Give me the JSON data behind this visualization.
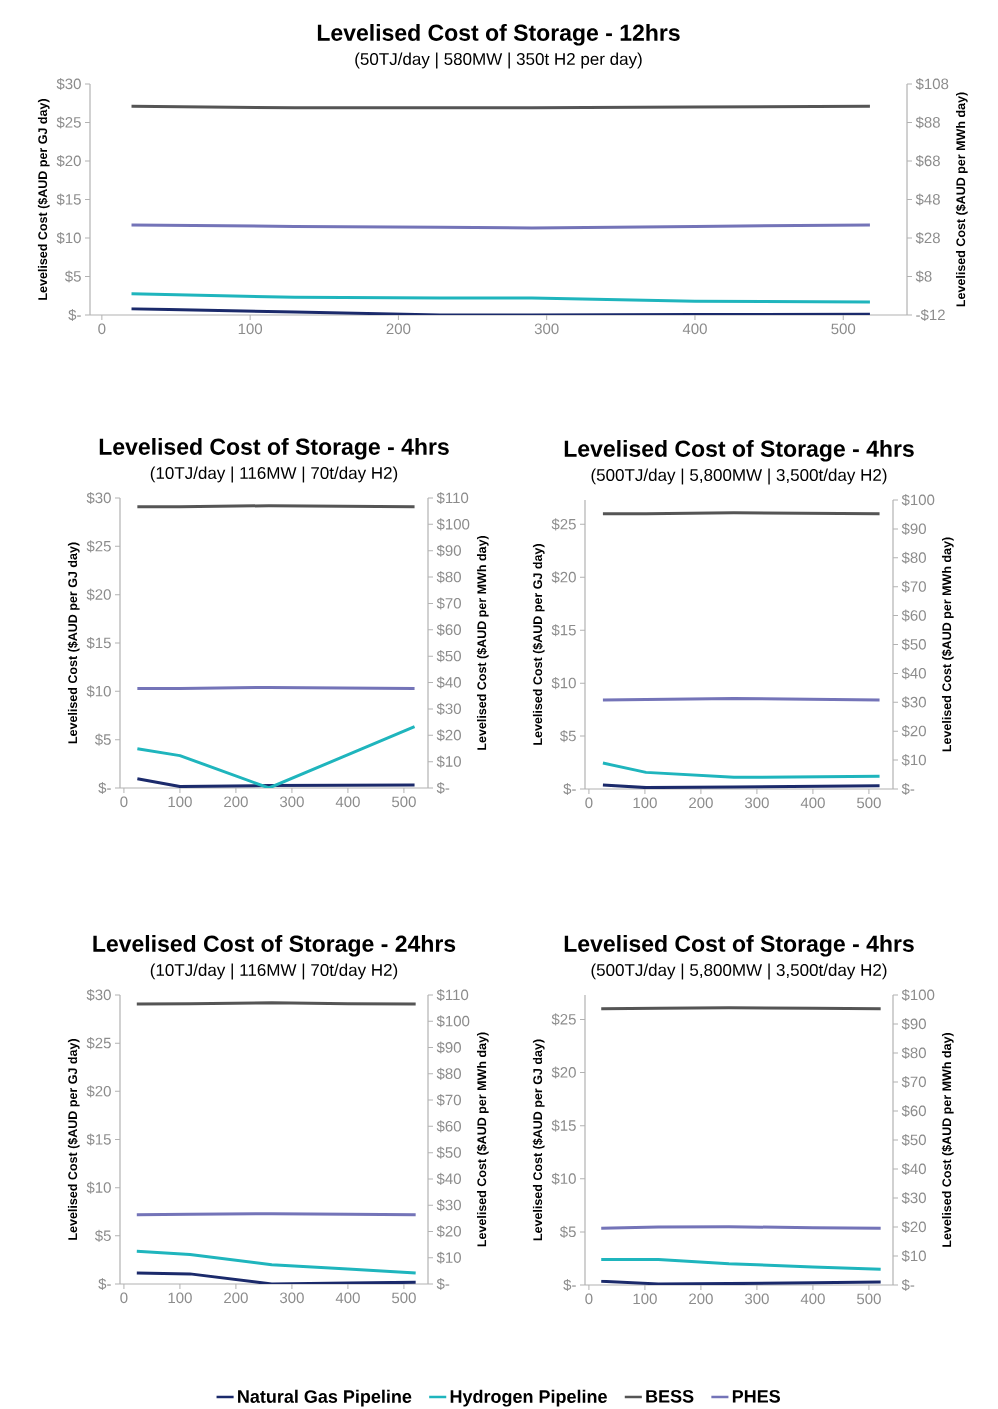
{
  "chart_data": [
    {
      "type": "line",
      "title": "Levelised Cost of Storage - 12hrs",
      "subtitle": "(50TJ/day | 580MW | 350t H2 per day)",
      "ylabel": "Levelised Cost ($AUD per GJ day)",
      "y2label": "Levelised Cost ($AUD per MWh day)",
      "xlim": [
        -8,
        543
      ],
      "xticks": [
        0,
        100,
        200,
        300,
        400,
        500
      ],
      "ylim": [
        0,
        30
      ],
      "yticks": [
        {
          "value": 0,
          "label": "$-"
        },
        {
          "value": 5,
          "label": "$5"
        },
        {
          "value": 10,
          "label": "$10"
        },
        {
          "value": 15,
          "label": "$15"
        },
        {
          "value": 20,
          "label": "$20"
        },
        {
          "value": 25,
          "label": "$25"
        },
        {
          "value": 30,
          "label": "$30"
        }
      ],
      "y2lim": [
        -12,
        108
      ],
      "y2ticks": [
        {
          "value": -12,
          "label": "-$12"
        },
        {
          "value": 8,
          "label": "$8"
        },
        {
          "value": 28,
          "label": "$28"
        },
        {
          "value": 48,
          "label": "$48"
        },
        {
          "value": 68,
          "label": "$68"
        },
        {
          "value": 88,
          "label": "$88"
        },
        {
          "value": 108,
          "label": "$108"
        }
      ],
      "x": [
        20,
        130,
        228,
        290,
        400,
        518
      ],
      "series": [
        {
          "color": "#1b2a6b",
          "values": [
            0.8,
            0.4,
            0,
            0,
            0.05,
            0.1
          ]
        },
        {
          "color": "#1fb5bd",
          "values": [
            2.75,
            2.3,
            2.2,
            2.2,
            1.8,
            1.7
          ]
        },
        {
          "color": "#555555",
          "values": [
            27.1,
            26.9,
            26.9,
            26.9,
            27.0,
            27.1
          ]
        },
        {
          "color": "#7474b8",
          "values": [
            11.7,
            11.5,
            11.4,
            11.3,
            11.5,
            11.7
          ]
        }
      ]
    },
    {
      "type": "line",
      "title": "Levelised Cost of Storage - 4hrs",
      "subtitle": "(10TJ/day | 116MW | 70t/day H2)",
      "ylabel": "Levelised Cost ($AUD per GJ day)",
      "y2label": "Levelised Cost ($AUD per MWh day)",
      "xlim": [
        -7,
        543
      ],
      "xticks": [
        0,
        100,
        200,
        300,
        400,
        500
      ],
      "ylim": [
        0,
        30
      ],
      "yticks": [
        {
          "value": 0,
          "label": "$-"
        },
        {
          "value": 5,
          "label": "$5"
        },
        {
          "value": 10,
          "label": "$10"
        },
        {
          "value": 15,
          "label": "$15"
        },
        {
          "value": 20,
          "label": "$20"
        },
        {
          "value": 25,
          "label": "$25"
        },
        {
          "value": 30,
          "label": "$30"
        }
      ],
      "y2lim": [
        0,
        110
      ],
      "y2ticks": [
        {
          "value": 0,
          "label": "$-"
        },
        {
          "value": 10,
          "label": "$10"
        },
        {
          "value": 20,
          "label": "$20"
        },
        {
          "value": 30,
          "label": "$30"
        },
        {
          "value": 40,
          "label": "$40"
        },
        {
          "value": 50,
          "label": "$50"
        },
        {
          "value": 60,
          "label": "$60"
        },
        {
          "value": 70,
          "label": "$70"
        },
        {
          "value": 80,
          "label": "$80"
        },
        {
          "value": 90,
          "label": "$90"
        },
        {
          "value": 100,
          "label": "$100"
        },
        {
          "value": 110,
          "label": "$110"
        }
      ],
      "x": [
        24,
        100,
        259,
        519
      ],
      "series": [
        {
          "color": "#1b2a6b",
          "values": [
            0.95,
            0.15,
            0.25,
            0.3
          ]
        },
        {
          "color": "#1fb5bd",
          "values": [
            4.05,
            3.35,
            0,
            6.35
          ]
        },
        {
          "color": "#555555",
          "values": [
            29.1,
            29.1,
            29.2,
            29.1
          ]
        },
        {
          "color": "#7474b8",
          "values": [
            10.3,
            10.3,
            10.4,
            10.3
          ]
        }
      ]
    },
    {
      "type": "line",
      "title": "Levelised Cost of Storage - 4hrs",
      "subtitle": "(500TJ/day | 5,800MW | 3,500t/day H2)",
      "ylabel": "Levelised Cost ($AUD per GJ day)",
      "y2label": "Levelised Cost ($AUD per MWh day)",
      "xlim": [
        -7,
        543
      ],
      "xticks": [
        0,
        100,
        200,
        300,
        400,
        500
      ],
      "ylim": [
        0,
        27.3
      ],
      "yticks": [
        {
          "value": 0,
          "label": "$-"
        },
        {
          "value": 5,
          "label": "$5"
        },
        {
          "value": 10,
          "label": "$10"
        },
        {
          "value": 15,
          "label": "$15"
        },
        {
          "value": 20,
          "label": "$20"
        },
        {
          "value": 25,
          "label": "$25"
        }
      ],
      "y2lim": [
        0,
        100
      ],
      "y2ticks": [
        {
          "value": 0,
          "label": "$-"
        },
        {
          "value": 10,
          "label": "$10"
        },
        {
          "value": 20,
          "label": "$20"
        },
        {
          "value": 30,
          "label": "$30"
        },
        {
          "value": 40,
          "label": "$40"
        },
        {
          "value": 50,
          "label": "$50"
        },
        {
          "value": 60,
          "label": "$60"
        },
        {
          "value": 70,
          "label": "$70"
        },
        {
          "value": 80,
          "label": "$80"
        },
        {
          "value": 90,
          "label": "$90"
        },
        {
          "value": 100,
          "label": "$100"
        }
      ],
      "x": [
        25,
        102,
        259,
        519
      ],
      "series": [
        {
          "color": "#1b2a6b",
          "values": [
            0.38,
            0.13,
            0.2,
            0.3
          ]
        },
        {
          "color": "#1fb5bd",
          "values": [
            2.45,
            1.57,
            1.1,
            1.2
          ]
        },
        {
          "color": "#555555",
          "values": [
            26.0,
            26.0,
            26.1,
            26.0
          ]
        },
        {
          "color": "#7474b8",
          "values": [
            8.4,
            8.45,
            8.55,
            8.4
          ]
        }
      ]
    },
    {
      "type": "line",
      "title": "Levelised Cost of Storage - 24hrs",
      "subtitle": "(10TJ/day | 116MW | 70t/day H2)",
      "ylabel": "Levelised Cost ($AUD per GJ day)",
      "y2label": "Levelised Cost ($AUD per MWh day)",
      "xlim": [
        -7,
        543
      ],
      "xticks": [
        0,
        100,
        200,
        300,
        400,
        500
      ],
      "ylim": [
        0,
        30
      ],
      "yticks": [
        {
          "value": 0,
          "label": "$-"
        },
        {
          "value": 5,
          "label": "$5"
        },
        {
          "value": 10,
          "label": "$10"
        },
        {
          "value": 15,
          "label": "$15"
        },
        {
          "value": 20,
          "label": "$20"
        },
        {
          "value": 25,
          "label": "$25"
        },
        {
          "value": 30,
          "label": "$30"
        }
      ],
      "y2lim": [
        0,
        110
      ],
      "y2ticks": [
        {
          "value": 0,
          "label": "$-"
        },
        {
          "value": 10,
          "label": "$10"
        },
        {
          "value": 20,
          "label": "$20"
        },
        {
          "value": 30,
          "label": "$30"
        },
        {
          "value": 40,
          "label": "$40"
        },
        {
          "value": 50,
          "label": "$50"
        },
        {
          "value": 60,
          "label": "$60"
        },
        {
          "value": 70,
          "label": "$70"
        },
        {
          "value": 80,
          "label": "$80"
        },
        {
          "value": 90,
          "label": "$90"
        },
        {
          "value": 100,
          "label": "$100"
        },
        {
          "value": 110,
          "label": "$110"
        }
      ],
      "x": [
        23,
        118,
        264,
        400,
        521
      ],
      "series": [
        {
          "color": "#1b2a6b",
          "values": [
            1.15,
            1.05,
            0,
            0.1,
            0.17
          ]
        },
        {
          "color": "#1fb5bd",
          "values": [
            3.4,
            3.06,
            2.0,
            1.56,
            1.15
          ]
        },
        {
          "color": "#555555",
          "values": [
            29.06,
            29.1,
            29.2,
            29.1,
            29.06
          ]
        },
        {
          "color": "#7474b8",
          "values": [
            7.2,
            7.25,
            7.3,
            7.25,
            7.2
          ]
        }
      ]
    },
    {
      "type": "line",
      "title": "Levelised Cost of Storage - 4hrs",
      "subtitle": "(500TJ/day | 5,800MW | 3,500t/day H2)",
      "ylabel": "Levelised Cost ($AUD per GJ day)",
      "y2label": "Levelised Cost ($AUD per MWh day)",
      "xlim": [
        -7,
        543
      ],
      "xticks": [
        0,
        100,
        200,
        300,
        400,
        500
      ],
      "ylim": [
        0,
        27.3
      ],
      "yticks": [
        {
          "value": 0,
          "label": "$-"
        },
        {
          "value": 5,
          "label": "$5"
        },
        {
          "value": 10,
          "label": "$10"
        },
        {
          "value": 15,
          "label": "$15"
        },
        {
          "value": 20,
          "label": "$20"
        },
        {
          "value": 25,
          "label": "$25"
        }
      ],
      "y2lim": [
        0,
        100
      ],
      "y2ticks": [
        {
          "value": 0,
          "label": "$-"
        },
        {
          "value": 10,
          "label": "$10"
        },
        {
          "value": 20,
          "label": "$20"
        },
        {
          "value": 30,
          "label": "$30"
        },
        {
          "value": 40,
          "label": "$40"
        },
        {
          "value": 50,
          "label": "$50"
        },
        {
          "value": 60,
          "label": "$60"
        },
        {
          "value": 70,
          "label": "$70"
        },
        {
          "value": 80,
          "label": "$80"
        },
        {
          "value": 90,
          "label": "$90"
        },
        {
          "value": 100,
          "label": "$100"
        }
      ],
      "x": [
        22,
        124,
        250,
        400,
        521
      ],
      "legend": "bottom",
      "series": [
        {
          "name": "Natural Gas Pipeline",
          "color": "#1b2a6b",
          "values": [
            0.35,
            0.1,
            0.13,
            0.2,
            0.28
          ]
        },
        {
          "name": "Hydrogen Pipeline",
          "color": "#1fb5bd",
          "values": [
            2.4,
            2.4,
            2.0,
            1.7,
            1.48
          ]
        },
        {
          "name": "BESS",
          "color": "#555555",
          "values": [
            26.0,
            26.05,
            26.1,
            26.05,
            26.0
          ]
        },
        {
          "name": "PHES",
          "color": "#7474b8",
          "values": [
            5.35,
            5.45,
            5.48,
            5.4,
            5.35
          ]
        }
      ]
    }
  ]
}
